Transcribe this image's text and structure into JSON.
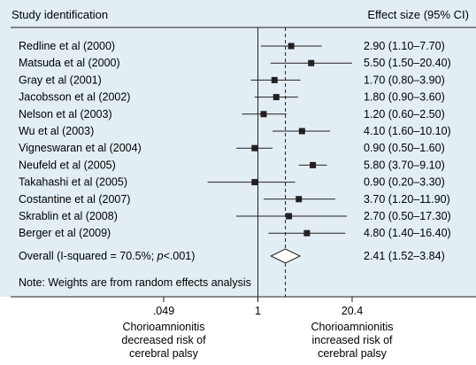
{
  "header": {
    "left_title": "Study identification",
    "right_title": "Effect size (95% CI)"
  },
  "chart_data": {
    "type": "forest",
    "scale": "log",
    "xlim": [
      0.049,
      20.4
    ],
    "reference_line": 1,
    "studies": [
      {
        "name": "Redline et al (2000)",
        "es": 2.9,
        "lo": 1.1,
        "hi": 7.7,
        "label": "2.90 (1.10–7.70)"
      },
      {
        "name": "Matsuda et al (2000)",
        "es": 5.5,
        "lo": 1.5,
        "hi": 20.4,
        "label": "5.50 (1.50–20.40)"
      },
      {
        "name": "Gray et al (2001)",
        "es": 1.7,
        "lo": 0.8,
        "hi": 3.9,
        "label": "1.70 (0.80–3.90)"
      },
      {
        "name": "Jacobsson et al (2002)",
        "es": 1.8,
        "lo": 0.9,
        "hi": 3.6,
        "label": "1.80 (0.90–3.60)"
      },
      {
        "name": "Nelson et al (2003)",
        "es": 1.2,
        "lo": 0.6,
        "hi": 2.5,
        "label": "1.20 (0.60–2.50)"
      },
      {
        "name": "Wu et al (2003)",
        "es": 4.1,
        "lo": 1.6,
        "hi": 10.1,
        "label": "4.10 (1.60–10.10)"
      },
      {
        "name": "Vigneswaran et al (2004)",
        "es": 0.9,
        "lo": 0.5,
        "hi": 1.6,
        "label": "0.90 (0.50–1.60)"
      },
      {
        "name": "Neufeld et al (2005)",
        "es": 5.8,
        "lo": 3.7,
        "hi": 9.1,
        "label": "5.80 (3.70–9.10)"
      },
      {
        "name": "Takahashi et al (2005)",
        "es": 0.9,
        "lo": 0.2,
        "hi": 3.3,
        "label": "0.90 (0.20–3.30)"
      },
      {
        "name": "Costantine et al (2007)",
        "es": 3.7,
        "lo": 1.2,
        "hi": 11.9,
        "label": "3.70 (1.20–11.90)"
      },
      {
        "name": "Skrablin et al (2008)",
        "es": 2.7,
        "lo": 0.5,
        "hi": 17.3,
        "label": "2.70 (0.50–17.30)"
      },
      {
        "name": "Berger et al (2009)",
        "es": 4.8,
        "lo": 1.4,
        "hi": 16.4,
        "label": "4.80 (1.40–16.40)"
      }
    ],
    "overall": {
      "label_prefix": "Overall (I-squared = 70.5%; ",
      "label_p": "p",
      "label_suffix": "<.001)",
      "es": 2.41,
      "lo": 1.52,
      "hi": 3.84,
      "ci_label": "2.41 (1.52–3.84)"
    },
    "note": "Note: Weights are from random effects analysis",
    "ticks": [
      {
        "value": 0.049,
        "label": ".049"
      },
      {
        "value": 1,
        "label": "1"
      },
      {
        "value": 20.4,
        "label": "20.4"
      }
    ],
    "captions": {
      "left": [
        "Chorioamnionitis",
        "decreased risk of",
        "cerebral palsy"
      ],
      "right": [
        "Chorioamnionitis",
        "increased risk of",
        "cerebral palsy"
      ]
    },
    "colors": {
      "background": "#e2eef4",
      "ink": "#231f20"
    }
  }
}
